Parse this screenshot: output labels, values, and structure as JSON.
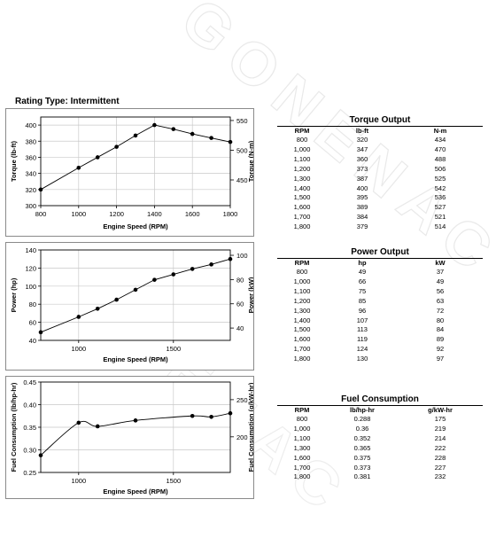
{
  "rating_type": "Rating Type: Intermittent",
  "watermark_text": "GONENAC",
  "chart_data": [
    {
      "type": "line",
      "x": [
        800,
        1000,
        1100,
        1200,
        1300,
        1400,
        1500,
        1600,
        1700,
        1800
      ],
      "series": [
        {
          "values": [
            320,
            347,
            360,
            373,
            387,
            400,
            395,
            389,
            384,
            379
          ]
        }
      ],
      "xlabel": "Engine Speed (RPM)",
      "ylabel": "Torque (lb-ft)",
      "ylabel_right": "Torque (N-m)",
      "xlim": [
        800,
        1800
      ],
      "ylim": [
        300,
        410
      ],
      "x_ticks": [
        800,
        1000,
        1200,
        1400,
        1600,
        1800
      ],
      "y_ticks": [
        300,
        320,
        340,
        360,
        380,
        400
      ],
      "y_right_ticks": [
        450,
        500,
        550
      ],
      "y_right_factor": 1.3558,
      "grid": true
    },
    {
      "type": "line",
      "x": [
        800,
        1000,
        1100,
        1200,
        1300,
        1400,
        1500,
        1600,
        1700,
        1800
      ],
      "series": [
        {
          "values": [
            49,
            66,
            75,
            85,
            96,
            107,
            113,
            119,
            124,
            130
          ]
        }
      ],
      "xlabel": "Engine Speed (RPM)",
      "ylabel": "Power (hp)",
      "ylabel_right": "Power (kW)",
      "xlim": [
        800,
        1800
      ],
      "ylim": [
        40,
        140
      ],
      "x_ticks": [
        1000,
        1500
      ],
      "y_ticks": [
        40,
        60,
        80,
        100,
        120,
        140
      ],
      "y_right_ticks": [
        40,
        60,
        80,
        100
      ],
      "y_right_factor": 0.7457,
      "grid": true
    },
    {
      "type": "line",
      "x": [
        800,
        1000,
        1100,
        1300,
        1600,
        1700,
        1800
      ],
      "series": [
        {
          "values": [
            0.288,
            0.36,
            0.352,
            0.365,
            0.375,
            0.373,
            0.381
          ]
        }
      ],
      "xlabel": "Engine Speed (RPM)",
      "ylabel": "Fuel Consumption (lb/hp-hr)",
      "ylabel_right": "Fuel Consumption (g/kW-hr)",
      "xlim": [
        800,
        1800
      ],
      "ylim": [
        0.25,
        0.45
      ],
      "x_ticks": [
        1000,
        1500
      ],
      "y_ticks": [
        0.25,
        0.3,
        0.35,
        0.4,
        0.45
      ],
      "y_ticks_text": [
        "0.25",
        "0.30",
        "0.35",
        "0.40",
        "0.45"
      ],
      "y_right_ticks": [
        200,
        250
      ],
      "y_right_factor": 608.277,
      "grid": true
    }
  ],
  "tables": [
    {
      "title": "Torque Output",
      "headers": [
        "RPM",
        "lb-ft",
        "N-m"
      ],
      "rows": [
        [
          "800",
          "320",
          "434"
        ],
        [
          "1,000",
          "347",
          "470"
        ],
        [
          "1,100",
          "360",
          "488"
        ],
        [
          "1,200",
          "373",
          "506"
        ],
        [
          "1,300",
          "387",
          "525"
        ],
        [
          "1,400",
          "400",
          "542"
        ],
        [
          "1,500",
          "395",
          "536"
        ],
        [
          "1,600",
          "389",
          "527"
        ],
        [
          "1,700",
          "384",
          "521"
        ],
        [
          "1,800",
          "379",
          "514"
        ]
      ]
    },
    {
      "title": "Power Output",
      "headers": [
        "RPM",
        "hp",
        "kW"
      ],
      "rows": [
        [
          "800",
          "49",
          "37"
        ],
        [
          "1,000",
          "66",
          "49"
        ],
        [
          "1,100",
          "75",
          "56"
        ],
        [
          "1,200",
          "85",
          "63"
        ],
        [
          "1,300",
          "96",
          "72"
        ],
        [
          "1,400",
          "107",
          "80"
        ],
        [
          "1,500",
          "113",
          "84"
        ],
        [
          "1,600",
          "119",
          "89"
        ],
        [
          "1,700",
          "124",
          "92"
        ],
        [
          "1,800",
          "130",
          "97"
        ]
      ]
    },
    {
      "title": "Fuel Consumption",
      "headers": [
        "RPM",
        "lb/hp-hr",
        "g/kW-hr"
      ],
      "rows": [
        [
          "800",
          "0.288",
          "175"
        ],
        [
          "1,000",
          "0.36",
          "219"
        ],
        [
          "1,100",
          "0.352",
          "214"
        ],
        [
          "1,300",
          "0.365",
          "222"
        ],
        [
          "1,600",
          "0.375",
          "228"
        ],
        [
          "1,700",
          "0.373",
          "227"
        ],
        [
          "1,800",
          "0.381",
          "232"
        ]
      ]
    }
  ]
}
